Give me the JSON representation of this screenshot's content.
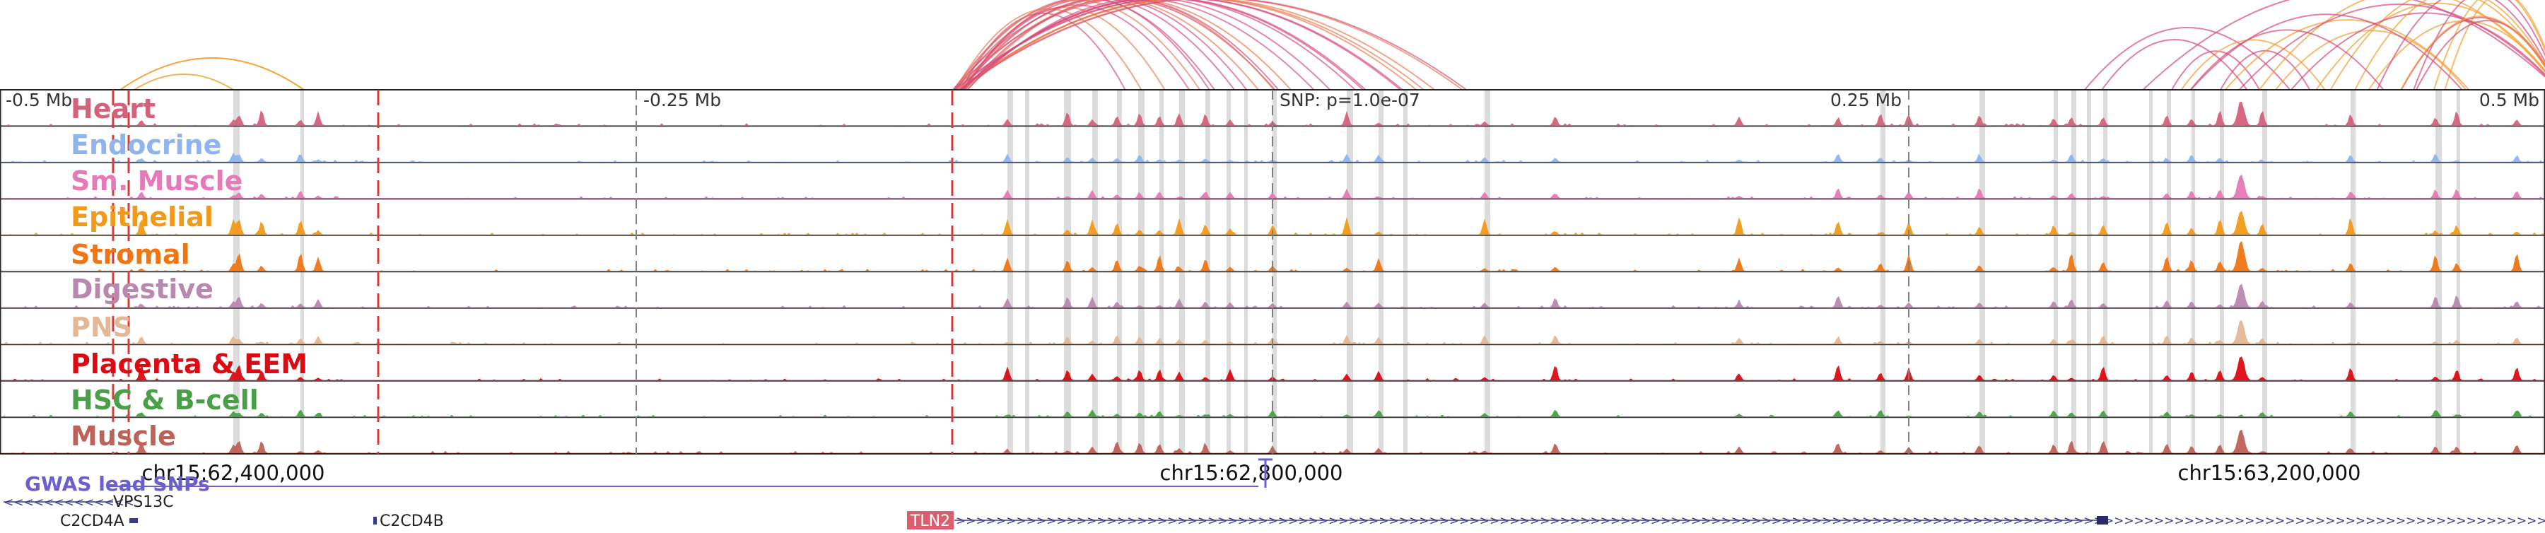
{
  "axis": {
    "scale_labels": [
      "-0.5 Mb",
      "-0.25 Mb",
      "0.25 Mb",
      "0.5 Mb"
    ],
    "snp_label": "SNP: p=1.0e-07",
    "positions": [
      "chr15:62,400,000",
      "chr15:62,800,000",
      "chr15:63,200,000"
    ]
  },
  "tracks": [
    {
      "label": "Heart",
      "color": "#d4627a"
    },
    {
      "label": "Endocrine",
      "color": "#8fb4ee"
    },
    {
      "label": "Sm. Muscle",
      "color": "#e57ab8"
    },
    {
      "label": "Epithelial",
      "color": "#f29a18"
    },
    {
      "label": "Stromal",
      "color": "#ef7612"
    },
    {
      "label": "Digestive",
      "color": "#b988b0"
    },
    {
      "label": "PNS",
      "color": "#e4b894"
    },
    {
      "label": "Placenta & EEM",
      "color": "#dd0a12"
    },
    {
      "label": "HSC & B-cell",
      "color": "#4aa048"
    },
    {
      "label": "Muscle",
      "color": "#be6157"
    }
  ],
  "gwas": {
    "label": "GWAS lead SNPs",
    "color": "#6b5fcf"
  },
  "genes": [
    {
      "name": "VPS13C",
      "strand": "-"
    },
    {
      "name": "C2CD4A",
      "strand": "-"
    },
    {
      "name": "C2CD4B",
      "strand": "-"
    },
    {
      "name": "TLN2",
      "strand": "+",
      "highlight": true
    }
  ],
  "colors": {
    "gene": "#3a3a8a",
    "highlight": "#d95f6e",
    "red_marker": "#d83a3a",
    "grid": "#808080",
    "peak_bar": "#dcdcdc",
    "arc_orange": "#f0a030",
    "arc_pink": "#d44a7a"
  }
}
